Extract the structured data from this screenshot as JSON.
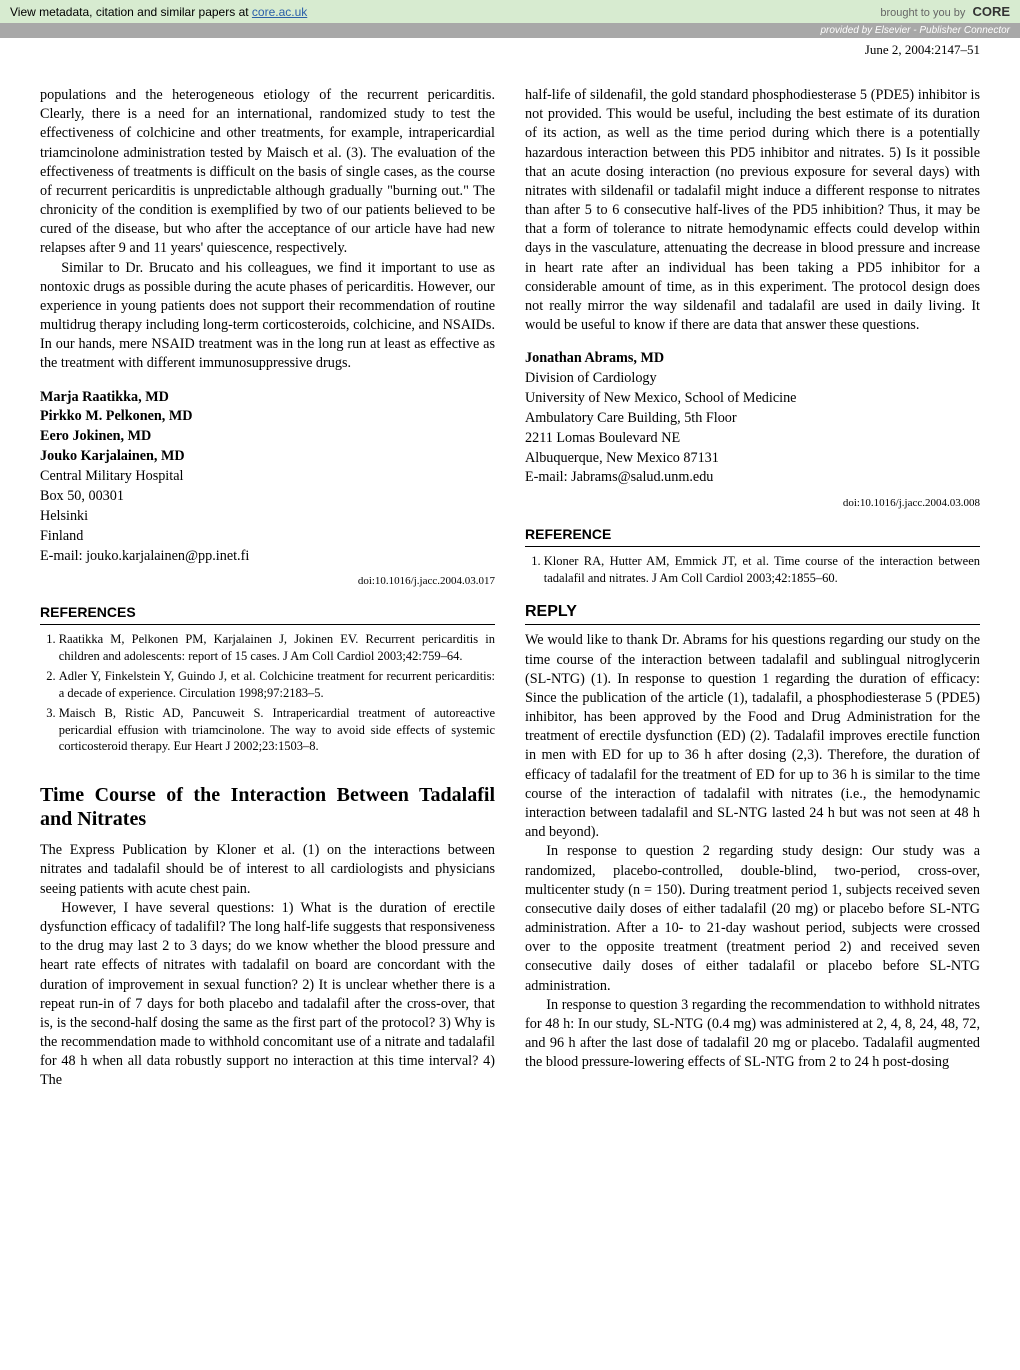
{
  "banner": {
    "meta_text": "View metadata, citation and similar papers at ",
    "meta_link": "core.ac.uk",
    "brought": "brought to you by",
    "core": "CORE",
    "provided": "provided by Elsevier - Publisher Connector"
  },
  "citation": "June 2, 2004:2147–51",
  "col1": {
    "p1": "populations and the heterogeneous etiology of the recurrent pericarditis. Clearly, there is a need for an international, randomized study to test the effectiveness of colchicine and other treatments, for example, intrapericardial triamcinolone administration tested by Maisch et al. (3). The evaluation of the effectiveness of treatments is difficult on the basis of single cases, as the course of recurrent pericarditis is unpredictable although gradually \"burning out.\" The chronicity of the condition is exemplified by two of our patients believed to be cured of the disease, but who after the acceptance of our article have had new relapses after 9 and 11 years' quiescence, respectively.",
    "p2": "Similar to Dr. Brucato and his colleagues, we find it important to use as nontoxic drugs as possible during the acute phases of pericarditis. However, our experience in young patients does not support their recommendation of routine multidrug therapy including long-term corticosteroids, colchicine, and NSAIDs. In our hands, mere NSAID treatment was in the long run at least as effective as the treatment with different immunosuppressive drugs.",
    "authors": {
      "a1": "Marja Raatikka, MD",
      "a2": "Pirkko M. Pelkonen, MD",
      "a3": "Eero Jokinen, MD",
      "a4": "Jouko Karjalainen, MD",
      "l1": "Central Military Hospital",
      "l2": "Box 50, 00301",
      "l3": "Helsinki",
      "l4": "Finland",
      "l5": "E-mail: jouko.karjalainen@pp.inet.fi"
    },
    "doi1": "doi:10.1016/j.jacc.2004.03.017",
    "refs_head": "REFERENCES",
    "r1": "Raatikka M, Pelkonen PM, Karjalainen J, Jokinen EV. Recurrent pericarditis in children and adolescents: report of 15 cases. J Am Coll Cardiol 2003;42:759–64.",
    "r2": "Adler Y, Finkelstein Y, Guindo J, et al. Colchicine treatment for recurrent pericarditis: a decade of experience. Circulation 1998;97:2183–5.",
    "r3": "Maisch B, Ristic AD, Pancuweit S. Intrapericardial treatment of autoreactive pericardial effusion with triamcinolone. The way to avoid side effects of systemic corticosteroid therapy. Eur Heart J 2002;23:1503–8.",
    "letter_title": "Time Course of the Interaction Between Tadalafil and Nitrates",
    "lp1": "The Express Publication by Kloner et al. (1) on the interactions between nitrates and tadalafil should be of interest to all cardiologists and physicians seeing patients with acute chest pain.",
    "lp2": "However, I have several questions: 1) What is the duration of erectile dysfunction efficacy of tadalifil? The long half-life suggests that responsiveness to the drug may last 2 to 3 days; do we know whether the blood pressure and heart rate effects of nitrates with tadalafil on board are concordant with the duration of improvement in sexual function? 2) It is unclear whether there is a repeat run-in of 7 days for both placebo and tadalafil after the cross-over, that is, is the second-half dosing the same as the first part of the protocol? 3) Why is the recommendation made to withhold concomitant use of a nitrate and tadalafil for 48 h when all data robustly support no interaction at this time interval? 4) The"
  },
  "col2": {
    "p1": "half-life of sildenafil, the gold standard phosphodiesterase 5 (PDE5) inhibitor is not provided. This would be useful, including the best estimate of its duration of its action, as well as the time period during which there is a potentially hazardous interaction between this PD5 inhibitor and nitrates. 5) Is it possible that an acute dosing interaction (no previous exposure for several days) with nitrates with sildenafil or tadalafil might induce a different response to nitrates than after 5 to 6 consecutive half-lives of the PD5 inhibition? Thus, it may be that a form of tolerance to nitrate hemodynamic effects could develop within days in the vasculature, attenuating the decrease in blood pressure and increase in heart rate after an individual has been taking a PD5 inhibitor for a considerable amount of time, as in this experiment. The protocol design does not really mirror the way sildenafil and tadalafil are used in daily living. It would be useful to know if there are data that answer these questions.",
    "sig": {
      "name": "Jonathan Abrams, MD",
      "l1": "Division of Cardiology",
      "l2": "University of New Mexico, School of Medicine",
      "l3": "Ambulatory Care Building, 5th Floor",
      "l4": "2211 Lomas Boulevard NE",
      "l5": "Albuquerque, New Mexico 87131",
      "l6": "E-mail: Jabrams@salud.unm.edu"
    },
    "doi2": "doi:10.1016/j.jacc.2004.03.008",
    "ref_head": "REFERENCE",
    "ref1": "Kloner RA, Hutter AM, Emmick JT, et al. Time course of the interaction between tadalafil and nitrates. J Am Coll Cardiol 2003;42:1855–60.",
    "reply_head": "REPLY",
    "rp1": "We would like to thank Dr. Abrams for his questions regarding our study on the time course of the interaction between tadalafil and sublingual nitroglycerin (SL-NTG) (1). In response to question 1 regarding the duration of efficacy: Since the publication of the article (1), tadalafil, a phosphodiesterase 5 (PDE5) inhibitor, has been approved by the Food and Drug Administration for the treatment of erectile dysfunction (ED) (2). Tadalafil improves erectile function in men with ED for up to 36 h after dosing (2,3). Therefore, the duration of efficacy of tadalafil for the treatment of ED for up to 36 h is similar to the time course of the interaction of tadalafil with nitrates (i.e., the hemodynamic interaction between tadalafil and SL-NTG lasted 24 h but was not seen at 48 h and beyond).",
    "rp2": "In response to question 2 regarding study design: Our study was a randomized, placebo-controlled, double-blind, two-period, cross-over, multicenter study (n = 150). During treatment period 1, subjects received seven consecutive daily doses of either tadalafil (20 mg) or placebo before SL-NTG administration. After a 10- to 21-day washout period, subjects were crossed over to the opposite treatment (treatment period 2) and received seven consecutive daily doses of either tadalafil or placebo before SL-NTG administration.",
    "rp3": "In response to question 3 regarding the recommendation to withhold nitrates for 48 h: In our study, SL-NTG (0.4 mg) was administered at 2, 4, 8, 24, 48, 72, and 96 h after the last dose of tadalafil 20 mg or placebo. Tadalafil augmented the blood pressure-lowering effects of SL-NTG from 2 to 24 h post-dosing"
  }
}
